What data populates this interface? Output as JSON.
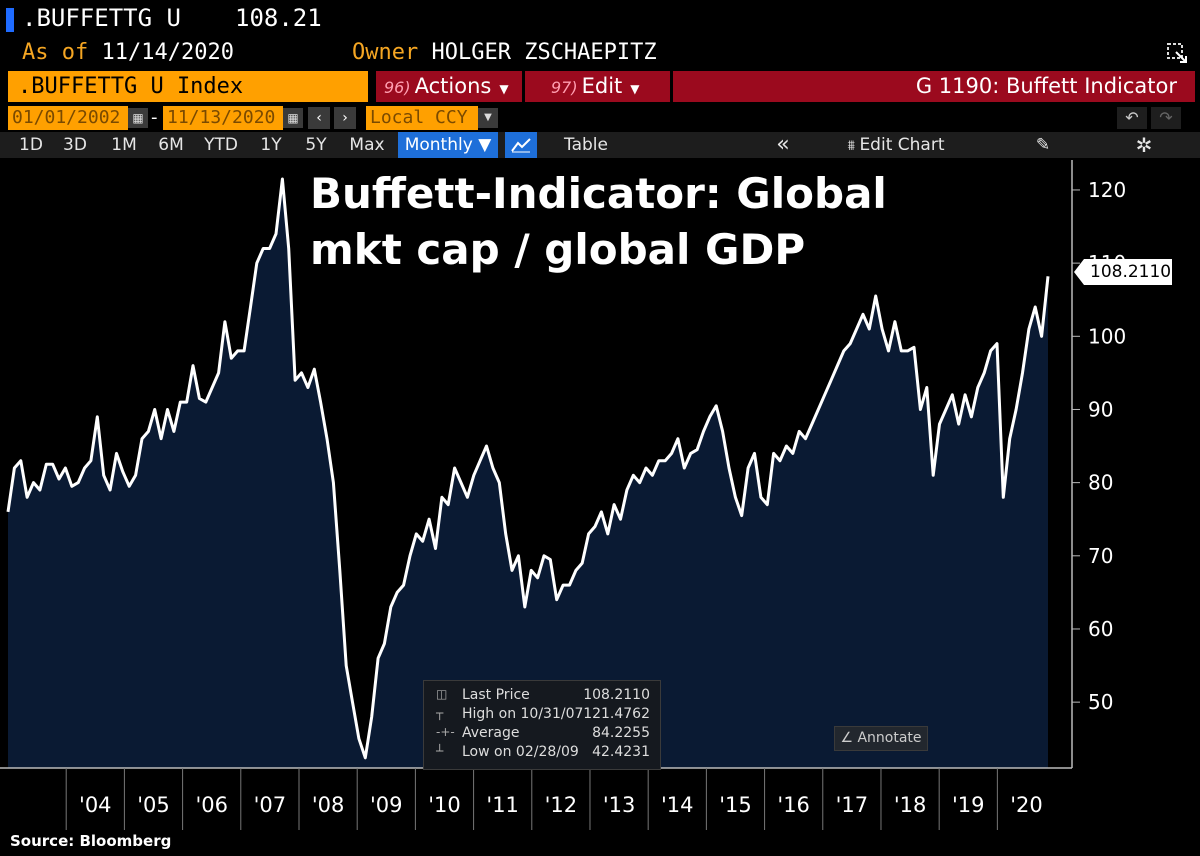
{
  "header": {
    "ticker": ".BUFFETTG U",
    "price": "108.21",
    "asof_label": "As of",
    "asof_date": "11/14/2020",
    "owner_label": "Owner",
    "owner_name": "HOLGER ZSCHAEPITZ"
  },
  "bar": {
    "index_label": ".BUFFETTG U Index",
    "actions_num": "96)",
    "actions_label": "Actions",
    "edit_num": "97)",
    "edit_label": "Edit",
    "graph_title": "G 1190: Buffett Indicator"
  },
  "dates": {
    "start": "01/01/2002",
    "end": "11/13/2020",
    "separator": "-",
    "currency": "Local CCY"
  },
  "toolbar": {
    "ranges": [
      "1D",
      "3D",
      "1M",
      "6M",
      "YTD",
      "1Y",
      "5Y",
      "Max"
    ],
    "frequency": "Monthly ▼",
    "table": "Table",
    "collapse": "«",
    "edit_chart": "Edit Chart"
  },
  "legend": {
    "last_label": "Last Price",
    "last_value": "108.2110",
    "high_label": "High on 10/31/07",
    "high_value": "121.4762",
    "avg_label": "Average",
    "avg_value": "84.2255",
    "low_label": "Low on 02/28/09",
    "low_value": "42.4231"
  },
  "annotate": "Annotate",
  "source": "Source: Bloomberg",
  "chart_data": {
    "type": "area",
    "title": "Buffett-Indicator: Global mkt cap / global GDP",
    "last_value_label": "108.2110",
    "ylim": [
      41,
      123
    ],
    "yticks": [
      50,
      60,
      70,
      80,
      90,
      100,
      110,
      120
    ],
    "xticks": [
      "'04",
      "'05",
      "'06",
      "'07",
      "'08",
      "'09",
      "'10",
      "'11",
      "'12",
      "'13",
      "'14",
      "'15",
      "'16",
      "'17",
      "'18",
      "'19",
      "'20"
    ],
    "x_start_year": 2003,
    "x_end_year": 2020.87,
    "line_color": "#ffffff",
    "fill_color": "#0a1a33",
    "series": [
      {
        "values": [
          76,
          82,
          83,
          78,
          80,
          79,
          82.5,
          82.5,
          80.5,
          82,
          79.5,
          80,
          82,
          83,
          89,
          81,
          79,
          84,
          81.5,
          79.5,
          81,
          86,
          87,
          90,
          86,
          90,
          87,
          91,
          91,
          96,
          91.5,
          91,
          93,
          95,
          102,
          97,
          98,
          98,
          104,
          110,
          112,
          112,
          114,
          121.5,
          112,
          94,
          95,
          93,
          95.5,
          91,
          86,
          80,
          68,
          55,
          50,
          45,
          42.4,
          48,
          56,
          58,
          63,
          65,
          66,
          70,
          73,
          72,
          75,
          71,
          78,
          77,
          82,
          80,
          78,
          81,
          83,
          85,
          82,
          80,
          73,
          68,
          70,
          63,
          68,
          67,
          70,
          69.5,
          64,
          66,
          66,
          68,
          69,
          73,
          74,
          76,
          73,
          77,
          75,
          79,
          81,
          80,
          82,
          81,
          83,
          83,
          84,
          86,
          82,
          84,
          84.5,
          87,
          89,
          90.5,
          87,
          82,
          78,
          75.5,
          82,
          84,
          78,
          77,
          84,
          83,
          85,
          84,
          87,
          86,
          88,
          90,
          92,
          94,
          96,
          98,
          99,
          101,
          103,
          101,
          105.5,
          101,
          98,
          102,
          98,
          98,
          98.5,
          90,
          93,
          81,
          88,
          90,
          92,
          88,
          92,
          89,
          93,
          95,
          98,
          99,
          78,
          86,
          90,
          95,
          101,
          104,
          100,
          108.2
        ]
      }
    ]
  }
}
